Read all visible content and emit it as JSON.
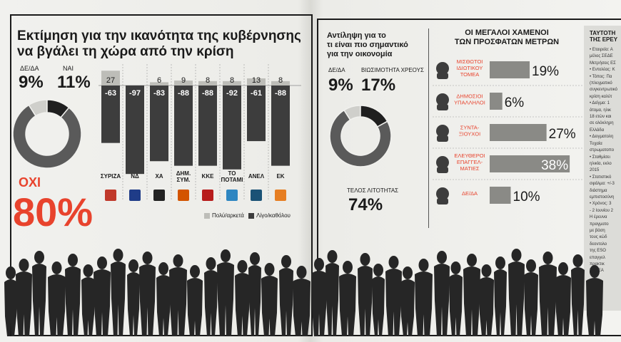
{
  "left": {
    "title_line1": "Εκτίμηση για την ικανότητα της κυβέρνησης",
    "title_line2": "να βγάλει τη χώρα από την κρίση",
    "labels": {
      "dk": "ΔΕ/ΔΑ",
      "yes": "ΝΑΙ",
      "no": "ΟΧΙ"
    },
    "legend": {
      "positive": "Πολύ/αρκετά",
      "negative": "Λίγο/καθόλου"
    }
  },
  "middle": {
    "title_line1": "Αντίληψη για το",
    "title_line2": "τι είναι πιο σημαντικό",
    "title_line3": "για την οικονομία",
    "labels": {
      "dk": "ΔΕ/ΔΑ",
      "debt": "ΒΙΩΣΙΜΟΤΗΤΑ ΧΡΕΟΥΣ",
      "austerity": "ΤΕΛΟΣ ΛΙΤΟΤΗΤΑΣ"
    }
  },
  "right": {
    "title_line1": "ΟΙ ΜΕΓΑΛΟΙ ΧΑΜΕΝΟΙ",
    "title_line2": "ΤΩΝ ΠΡΟΣΦΑΤΩΝ ΜΕΤΡΩΝ"
  },
  "sidebar": {
    "title_line1": "ΤΑΥΤΟΤΗ",
    "title_line2": "ΤΗΣ ΕΡΕΥ",
    "lines": [
      "• Εταιρεία: Α",
      "μέλος ΣΕΔΕ",
      "Μετρήσεις ΕΣ",
      "• Εντολέας: Κ",
      "• Τόπος: Πα",
      "(πλεγματικό",
      "συγκεντρωτικό",
      "κρίση καλύτ",
      "• Δείγμα: 1",
      "άτομα, ηλικ",
      "18 ετών και",
      "σε ολόκληρη",
      "Ελλάδα",
      "• Δειγματολη",
      "Τυχαία",
      "στρωματοπο",
      "• Σταθμίσει",
      "ηλικία, εκλο",
      "2015",
      "• Στατιστικό",
      "σφάλμα: +/-3",
      "διάστημα",
      "εμπιστοσύνη",
      "• Χρόνος: 3",
      "- 2 Ιουνίου 2",
      "Η έρευνα",
      "πραγματο",
      "με βάση",
      "τους κώδ",
      "δεοντολο",
      "της ESO",
      "επαγγελ",
      "πρακτικ",
      "ΣΕΔΕΑ"
    ]
  },
  "chart_data": [
    {
      "type": "pie",
      "title": "Εκτίμηση για την ικανότητα της κυβέρνησης να βγάλει τη χώρα από την κρίση",
      "categories": [
        "ΔΕ/ΔΑ",
        "ΝΑΙ",
        "ΟΧΙ"
      ],
      "values": [
        9,
        11,
        80
      ],
      "value_labels": [
        "9%",
        "11%",
        "80%"
      ],
      "colors": [
        "#cfcfcb",
        "#1f1f1f",
        "#5a5a5a"
      ]
    },
    {
      "type": "bar",
      "categories": [
        "ΣΥΡΙΖΑ",
        "ΝΔ",
        "ΧΑ",
        "ΔΗΜ. ΣΥΜ.",
        "ΚΚΕ",
        "ΤΟ ΠΟΤΑΜΙ",
        "ΑΝΕΛ",
        "ΕΚ"
      ],
      "series": [
        {
          "name": "Πολύ/αρκετά",
          "values": [
            27,
            0,
            6,
            9,
            8,
            8,
            13,
            8
          ],
          "labels": [
            "27",
            "",
            "6",
            "9",
            "8",
            "8",
            "13",
            "8"
          ],
          "color": "#bdbdb8"
        },
        {
          "name": "Λίγο/καθόλου",
          "values": [
            -63,
            -97,
            -83,
            -88,
            -88,
            -92,
            -61,
            -88
          ],
          "labels": [
            "-63",
            "-97",
            "-83",
            "-88",
            "-88",
            "-92",
            "-61",
            "-88"
          ],
          "color": "#3d3d3d"
        }
      ],
      "ylim": [
        -100,
        30
      ],
      "legend": "bottom-right"
    },
    {
      "type": "pie",
      "title": "Αντίληψη για το τι είναι πιο σημαντικό για την οικονομία",
      "categories": [
        "ΔΕ/ΔΑ",
        "ΒΙΩΣΙΜΟΤΗΤΑ ΧΡΕΟΥΣ",
        "ΤΕΛΟΣ ΛΙΤΟΤΗΤΑΣ"
      ],
      "values": [
        9,
        17,
        74
      ],
      "value_labels": [
        "9%",
        "17%",
        "74%"
      ],
      "colors": [
        "#cfcfcb",
        "#1f1f1f",
        "#5a5a5a"
      ]
    },
    {
      "type": "bar",
      "title": "ΟΙ ΜΕΓΑΛΟΙ ΧΑΜΕΝΟΙ ΤΩΝ ΠΡΟΣΦΑΤΩΝ ΜΕΤΡΩΝ",
      "categories": [
        "ΜΙΣΘΩΤΟΙ ΙΔΙΩΤΙΚΟΥ ΤΟΜΕΑ",
        "ΔΗΜΟΣΙΟΙ ΥΠΑΛΛΗΛΟΙ",
        "ΣΥΝΤΑ-ΞΙΟΥΧΟΙ",
        "ΕΛΕΥΘΕΡΟΙ ΕΠΑΓΓΕΛ-ΜΑΤΙΕΣ",
        "ΔΕ/ΔΑ"
      ],
      "category_lines": [
        [
          "ΜΙΣΘΩΤΟΙ",
          "ΙΔΙΩΤΙΚΟΥ",
          "ΤΟΜΕΑ"
        ],
        [
          "ΔΗΜΟΣΙΟΙ",
          "ΥΠΑΛΛΗΛΟΙ"
        ],
        [
          "ΣΥΝΤΑ-",
          "ΞΙΟΥΧΟΙ"
        ],
        [
          "ΕΛΕΥΘΕΡΟΙ",
          "ΕΠΑΓΓΕΛ-",
          "ΜΑΤΙΕΣ"
        ],
        [
          "ΔΕ/ΔΑ"
        ]
      ],
      "values": [
        19,
        6,
        27,
        38,
        10
      ],
      "value_labels": [
        "19%",
        "6%",
        "27%",
        "38%",
        "10%"
      ],
      "orientation": "horizontal",
      "xlim": [
        0,
        40
      ]
    }
  ],
  "colors": {
    "accent": "#e8432d",
    "dark": "#3d3d3d",
    "light": "#bdbdb8",
    "ink": "#1a1a1a"
  }
}
